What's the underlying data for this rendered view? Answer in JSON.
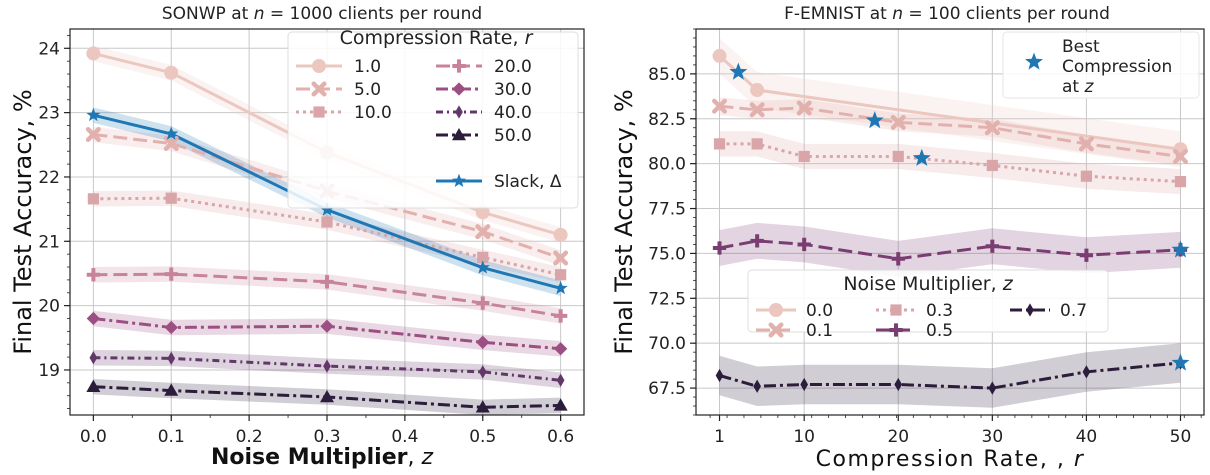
{
  "chart_data": [
    {
      "type": "line",
      "title": "SONWP at n = 1000 clients per round",
      "title_parts": {
        "before": "SONWP at ",
        "var": "n",
        "after": " = 1000 clients per round"
      },
      "xlabel": "Noise Multiplier, z",
      "xlabel_parts": {
        "bold": "Noise Multiplier",
        "rest": ", ",
        "var": "z"
      },
      "ylabel": "Final Test Accuracy, %",
      "xlim": [
        -0.03,
        0.63
      ],
      "ylim": [
        18.3,
        24.3
      ],
      "xticks": [
        0.0,
        0.1,
        0.2,
        0.3,
        0.4,
        0.5,
        0.6
      ],
      "xtick_labels": [
        "0.0",
        "0.1",
        "0.2",
        "0.3",
        "0.4",
        "0.5",
        "0.6"
      ],
      "yticks": [
        19,
        20,
        21,
        22,
        23,
        24
      ],
      "ytick_labels": [
        "19",
        "20",
        "21",
        "22",
        "23",
        "24"
      ],
      "grid": true,
      "legend": {
        "title": "Compression Rate, r",
        "title_parts": {
          "text": "Compression Rate, ",
          "var": "r"
        },
        "placement": "top-right"
      },
      "x": [
        0.0,
        0.1,
        0.3,
        0.5,
        0.6
      ],
      "series": [
        {
          "name": "1.0",
          "color": "#ebc7bf",
          "marker": "circle",
          "dash": "solid",
          "values": [
            23.92,
            23.62,
            22.38,
            21.45,
            21.1
          ]
        },
        {
          "name": "5.0",
          "color": "#e2b1ae",
          "marker": "x",
          "dash": "long",
          "values": [
            22.66,
            22.52,
            21.78,
            21.15,
            20.74
          ]
        },
        {
          "name": "10.0",
          "color": "#d9a5a8",
          "marker": "square",
          "dash": "dot",
          "values": [
            21.66,
            21.67,
            21.3,
            20.75,
            20.48
          ]
        },
        {
          "name": "20.0",
          "color": "#c8839a",
          "marker": "plus",
          "dash": "long",
          "values": [
            20.48,
            20.49,
            20.37,
            20.04,
            19.84
          ]
        },
        {
          "name": "30.0",
          "color": "#9c4f82",
          "marker": "diamond",
          "dash": "dashdot",
          "values": [
            19.8,
            19.66,
            19.68,
            19.43,
            19.33
          ]
        },
        {
          "name": "40.0",
          "color": "#623869",
          "marker": "thindiamond",
          "dash": "dashdot2",
          "values": [
            19.19,
            19.18,
            19.06,
            18.97,
            18.84
          ]
        },
        {
          "name": "50.0",
          "color": "#2c1d3c",
          "marker": "triangle",
          "dash": "dashdot",
          "values": [
            18.74,
            18.68,
            18.58,
            18.42,
            18.45
          ]
        },
        {
          "name": "Slack, Δ",
          "color": "#1f77b4",
          "marker": "star",
          "dash": "solid",
          "values": [
            22.96,
            22.67,
            21.49,
            20.59,
            20.27
          ]
        }
      ]
    },
    {
      "type": "line",
      "title": "F-EMNIST at n = 100 clients per round",
      "title_parts": {
        "before": "F-EMNIST at ",
        "var": "n",
        "after": " = 100 clients per round"
      },
      "xlabel": "Compression Rate, , r",
      "xlabel_parts": {
        "text": "Compression Rate, , ",
        "var": "r"
      },
      "ylabel": "Final Test Accuracy, %",
      "xlim": [
        -1.5,
        52.5
      ],
      "ylim": [
        66,
        87.5
      ],
      "xticks": [
        1,
        10,
        20,
        30,
        40,
        50
      ],
      "xtick_labels": [
        "1",
        "10",
        "20",
        "30",
        "40",
        "50"
      ],
      "yticks": [
        67.5,
        70.0,
        72.5,
        75.0,
        77.5,
        80.0,
        82.5,
        85.0
      ],
      "ytick_labels": [
        "67.5",
        "70.0",
        "72.5",
        "75.0",
        "77.5",
        "80.0",
        "82.5",
        "85.0"
      ],
      "grid": true,
      "legend": {
        "title": "Noise Multiplier, z",
        "title_parts": {
          "text": "Noise Multiplier, ",
          "var": "z"
        },
        "placement": "lower-center"
      },
      "star_legend": {
        "label": "Best Compression at z",
        "lines": [
          "Best",
          "Compression",
          "at "
        ],
        "var": "z",
        "placement": "top-right"
      },
      "x": [
        1,
        5,
        10,
        20,
        30,
        40,
        50
      ],
      "series": [
        {
          "name": "0.0",
          "color": "#ebc7bf",
          "marker": "circle",
          "dash": "solid",
          "values": [
            86.0,
            84.1,
            null,
            null,
            null,
            null,
            80.8
          ],
          "band": 1.0
        },
        {
          "name": "0.1",
          "color": "#e2b1ae",
          "marker": "x",
          "dash": "long",
          "values": [
            83.2,
            83.0,
            83.1,
            82.3,
            82.0,
            81.1,
            80.4
          ],
          "band": 0.5
        },
        {
          "name": "0.3",
          "color": "#d9a5a8",
          "marker": "square",
          "dash": "dot",
          "values": [
            81.1,
            81.1,
            80.4,
            80.4,
            79.9,
            79.3,
            79.0
          ],
          "band": 0.7
        },
        {
          "name": "0.5",
          "color": "#7a3d72",
          "marker": "plus",
          "dash": "long",
          "values": [
            75.3,
            75.7,
            75.5,
            74.7,
            75.4,
            74.9,
            75.2
          ],
          "band": 1.0
        },
        {
          "name": "0.7",
          "color": "#2c1d3c",
          "marker": "thindiamond",
          "dash": "dashdot",
          "values": [
            68.2,
            67.6,
            67.7,
            67.7,
            67.5,
            68.4,
            68.9
          ],
          "band": 1.1
        }
      ],
      "best_points": {
        "color": "#1f77b4",
        "x": [
          3.0,
          17.5,
          22.5,
          50,
          50
        ],
        "y": [
          85.1,
          82.4,
          80.3,
          75.2,
          68.9
        ]
      }
    }
  ]
}
